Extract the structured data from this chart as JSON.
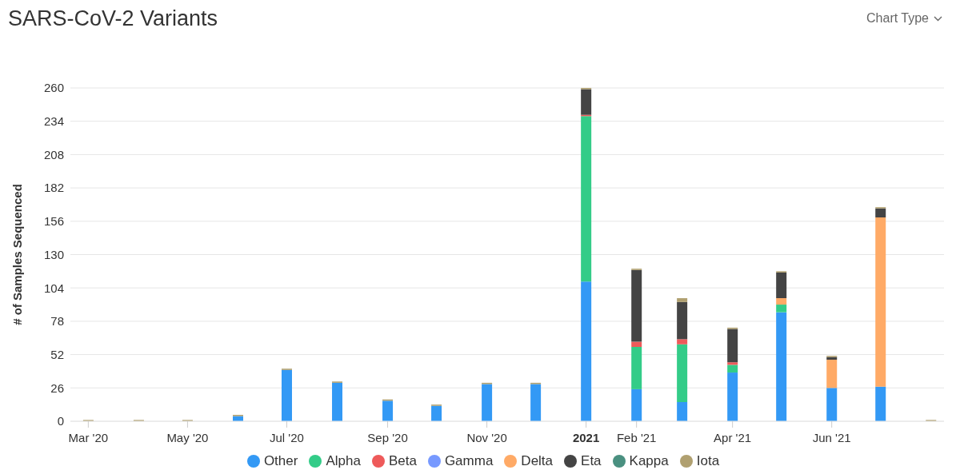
{
  "chart_data": {
    "type": "bar",
    "title": "SARS-CoV-2 Variants",
    "ylabel": "# of Samples Sequenced",
    "annotations": [
      "Chart Type"
    ],
    "stacked": true,
    "x": [
      "2020-03",
      "2020-04",
      "2020-05",
      "2020-06",
      "2020-07",
      "2020-08",
      "2020-09",
      "2020-10",
      "2020-11",
      "2020-12",
      "2021-01",
      "2021-02",
      "2021-03",
      "2021-04",
      "2021-05",
      "2021-06",
      "2021-07",
      "2021-08"
    ],
    "xlim": [
      "2020-02-19",
      "2021-08-09"
    ],
    "xticks": [
      {
        "value": "2020-03",
        "label": "Mar '20"
      },
      {
        "value": "2020-05",
        "label": "May '20"
      },
      {
        "value": "2020-07",
        "label": "Jul '20"
      },
      {
        "value": "2020-09",
        "label": "Sep '20"
      },
      {
        "value": "2020-11",
        "label": "Nov '20"
      },
      {
        "value": "2021-01",
        "label": "2021"
      },
      {
        "value": "2021-02",
        "label": "Feb '21"
      },
      {
        "value": "2021-04",
        "label": "Apr '21"
      },
      {
        "value": "2021-06",
        "label": "Jun '21"
      }
    ],
    "ylim": [
      0,
      260
    ],
    "yticks": [
      0,
      26,
      52,
      78,
      104,
      130,
      156,
      182,
      208,
      234,
      260
    ],
    "grid": "y",
    "legend": "bottom",
    "series": [
      {
        "name": "Other",
        "color": "#3399f5",
        "values": [
          0,
          0,
          0,
          4,
          40,
          30,
          16,
          12,
          29,
          29,
          109,
          25,
          15,
          38,
          85,
          26,
          27,
          0
        ]
      },
      {
        "name": "Alpha",
        "color": "#33cc88",
        "values": [
          0,
          0,
          0,
          0,
          0,
          0,
          0,
          0,
          0,
          0,
          129,
          33,
          45,
          6,
          6,
          0,
          0,
          0
        ]
      },
      {
        "name": "Beta",
        "color": "#ee5a5a",
        "values": [
          0,
          0,
          0,
          0,
          0,
          0,
          0,
          0,
          0,
          0,
          1,
          4,
          4,
          2,
          0,
          0,
          0,
          0
        ]
      },
      {
        "name": "Gamma",
        "color": "#7799ff",
        "values": [
          0,
          0,
          0,
          0,
          0,
          0,
          0,
          0,
          0,
          0,
          0,
          0,
          0,
          0,
          0,
          0,
          0,
          0
        ]
      },
      {
        "name": "Delta",
        "color": "#ffaa66",
        "values": [
          0,
          0,
          0,
          0,
          0,
          0,
          0,
          0,
          0,
          0,
          0,
          0,
          0,
          0,
          5,
          22,
          132,
          0
        ]
      },
      {
        "name": "Eta",
        "color": "#444444",
        "values": [
          0,
          0,
          0,
          0,
          0,
          0,
          0,
          0,
          0,
          0,
          20,
          56,
          29,
          26,
          20,
          2,
          7,
          0
        ]
      },
      {
        "name": "Kappa",
        "color": "#4a9080",
        "values": [
          0,
          0,
          0,
          0,
          0,
          0,
          0,
          0,
          0,
          0,
          0,
          0,
          0,
          0,
          0,
          0,
          0,
          0
        ]
      },
      {
        "name": "Iota",
        "color": "#b0a070",
        "values": [
          1,
          1,
          1,
          1,
          1,
          1,
          1,
          1,
          1,
          1,
          1,
          1,
          3,
          1,
          1,
          1,
          1,
          1
        ]
      }
    ]
  }
}
